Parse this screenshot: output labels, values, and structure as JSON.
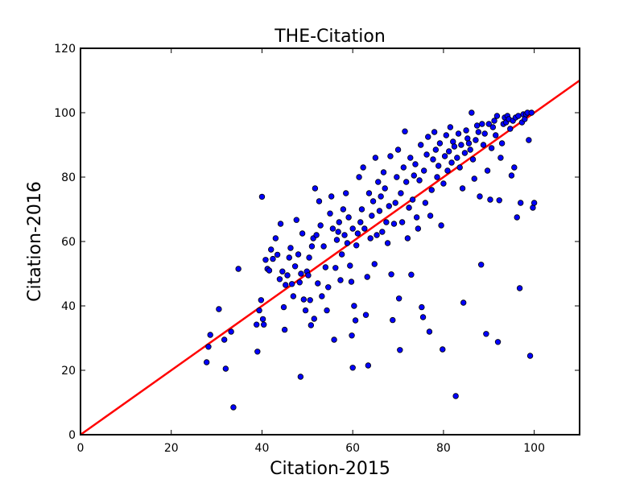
{
  "chart_data": {
    "type": "scatter",
    "title": "THE-Citation",
    "xlabel": "Citation-2015",
    "ylabel": "Citation-2016",
    "xlim": [
      0,
      110
    ],
    "ylim": [
      0,
      120
    ],
    "xticks": [
      "0",
      "20",
      "40",
      "60",
      "80",
      "100"
    ],
    "yticks": [
      "0",
      "20",
      "40",
      "60",
      "80",
      "100",
      "120"
    ],
    "grid": false,
    "legend": "none",
    "colors": {
      "points": "#0000ff",
      "point_edge": "#000000",
      "line": "#ff0000"
    },
    "reference_line": {
      "type": "y=x",
      "x": [
        0,
        110
      ],
      "y": [
        0,
        110
      ]
    },
    "series": [
      {
        "points": [
          [
            27.8,
            22.5
          ],
          [
            28.2,
            27.3
          ],
          [
            28.6,
            31.0
          ],
          [
            30.5,
            39.0
          ],
          [
            31.7,
            29.5
          ],
          [
            32.0,
            20.5
          ],
          [
            33.2,
            32.0
          ],
          [
            33.7,
            8.5
          ],
          [
            34.8,
            51.5
          ],
          [
            38.8,
            34.2
          ],
          [
            39.0,
            25.8
          ],
          [
            39.4,
            38.6
          ],
          [
            39.8,
            41.8
          ],
          [
            40.0,
            73.9
          ],
          [
            40.2,
            35.9
          ],
          [
            40.4,
            34.2
          ],
          [
            40.8,
            54.3
          ],
          [
            41.2,
            51.5
          ],
          [
            41.6,
            51.0
          ],
          [
            42.0,
            57.5
          ],
          [
            42.4,
            54.6
          ],
          [
            43.0,
            61.0
          ],
          [
            43.4,
            55.9
          ],
          [
            43.9,
            48.3
          ],
          [
            44.1,
            65.5
          ],
          [
            44.5,
            50.7
          ],
          [
            44.8,
            39.6
          ],
          [
            45.0,
            32.6
          ],
          [
            45.2,
            46.5
          ],
          [
            45.6,
            49.5
          ],
          [
            46.0,
            55.0
          ],
          [
            46.3,
            58.0
          ],
          [
            46.6,
            46.8
          ],
          [
            46.9,
            43.0
          ],
          [
            47.3,
            52.3
          ],
          [
            47.6,
            66.7
          ],
          [
            48.0,
            56.0
          ],
          [
            48.3,
            47.3
          ],
          [
            48.6,
            50.0
          ],
          [
            48.9,
            62.5
          ],
          [
            49.2,
            42.0
          ],
          [
            48.5,
            18.0
          ],
          [
            49.6,
            38.6
          ],
          [
            49.9,
            50.7
          ],
          [
            50.2,
            49.5
          ],
          [
            50.4,
            55.0
          ],
          [
            50.6,
            41.8
          ],
          [
            50.8,
            34.0
          ],
          [
            51.0,
            58.5
          ],
          [
            51.3,
            61.0
          ],
          [
            51.5,
            36.0
          ],
          [
            51.7,
            76.5
          ],
          [
            52.0,
            62.0
          ],
          [
            52.3,
            47.0
          ],
          [
            52.6,
            72.5
          ],
          [
            52.9,
            65.0
          ],
          [
            53.2,
            43.0
          ],
          [
            53.6,
            58.5
          ],
          [
            54.0,
            52.0
          ],
          [
            54.3,
            38.6
          ],
          [
            54.6,
            45.8
          ],
          [
            55.0,
            68.7
          ],
          [
            55.3,
            74.0
          ],
          [
            55.6,
            64.0
          ],
          [
            55.9,
            29.5
          ],
          [
            56.2,
            51.8
          ],
          [
            56.5,
            60.5
          ],
          [
            56.8,
            63.0
          ],
          [
            57.0,
            66.0
          ],
          [
            57.3,
            48.0
          ],
          [
            57.6,
            56.0
          ],
          [
            57.9,
            70.0
          ],
          [
            58.2,
            62.0
          ],
          [
            58.5,
            75.0
          ],
          [
            58.8,
            59.5
          ],
          [
            59.1,
            67.5
          ],
          [
            59.4,
            52.5
          ],
          [
            59.7,
            47.5
          ],
          [
            60.0,
            64.0
          ],
          [
            59.8,
            30.8
          ],
          [
            60.0,
            20.8
          ],
          [
            60.3,
            40.0
          ],
          [
            60.6,
            35.5
          ],
          [
            60.8,
            58.8
          ],
          [
            61.1,
            62.5
          ],
          [
            61.4,
            80.0
          ],
          [
            61.7,
            66.0
          ],
          [
            62.0,
            70.0
          ],
          [
            62.3,
            83.0
          ],
          [
            62.6,
            64.0
          ],
          [
            62.9,
            37.2
          ],
          [
            63.2,
            49.0
          ],
          [
            63.4,
            21.5
          ],
          [
            63.6,
            75.0
          ],
          [
            63.9,
            61.0
          ],
          [
            64.2,
            68.0
          ],
          [
            64.5,
            72.5
          ],
          [
            64.8,
            53.0
          ],
          [
            65.0,
            86.0
          ],
          [
            65.3,
            62.0
          ],
          [
            65.6,
            78.5
          ],
          [
            65.9,
            69.5
          ],
          [
            66.2,
            74.0
          ],
          [
            66.5,
            63.0
          ],
          [
            66.8,
            81.5
          ],
          [
            67.1,
            76.5
          ],
          [
            67.4,
            66.0
          ],
          [
            67.7,
            59.5
          ],
          [
            68.0,
            71.0
          ],
          [
            68.3,
            86.5
          ],
          [
            68.5,
            49.8
          ],
          [
            68.8,
            35.6
          ],
          [
            69.1,
            65.5
          ],
          [
            69.4,
            72.0
          ],
          [
            69.7,
            80.0
          ],
          [
            70.0,
            88.5
          ],
          [
            70.2,
            42.3
          ],
          [
            70.4,
            26.3
          ],
          [
            70.6,
            75.0
          ],
          [
            70.9,
            66.0
          ],
          [
            71.2,
            83.0
          ],
          [
            71.5,
            94.2
          ],
          [
            71.8,
            78.5
          ],
          [
            72.1,
            61.0
          ],
          [
            72.4,
            70.5
          ],
          [
            72.7,
            86.0
          ],
          [
            72.9,
            49.7
          ],
          [
            73.2,
            73.0
          ],
          [
            73.5,
            80.5
          ],
          [
            73.8,
            84.0
          ],
          [
            74.1,
            67.5
          ],
          [
            74.4,
            64.0
          ],
          [
            74.7,
            79.0
          ],
          [
            75.0,
            90.0
          ],
          [
            75.2,
            39.6
          ],
          [
            75.5,
            36.5
          ],
          [
            75.7,
            82.0
          ],
          [
            76.0,
            72.0
          ],
          [
            76.3,
            87.0
          ],
          [
            76.6,
            92.5
          ],
          [
            76.9,
            32.0
          ],
          [
            77.1,
            68.0
          ],
          [
            77.4,
            76.0
          ],
          [
            77.7,
            85.5
          ],
          [
            78.0,
            94.0
          ],
          [
            78.3,
            88.5
          ],
          [
            78.6,
            80.0
          ],
          [
            78.9,
            83.5
          ],
          [
            79.2,
            90.5
          ],
          [
            79.5,
            65.0
          ],
          [
            79.8,
            26.5
          ],
          [
            80.0,
            78.0
          ],
          [
            80.3,
            86.5
          ],
          [
            80.6,
            93.0
          ],
          [
            80.9,
            82.0
          ],
          [
            81.2,
            88.0
          ],
          [
            81.5,
            95.5
          ],
          [
            81.8,
            84.5
          ],
          [
            82.1,
            91.0
          ],
          [
            82.4,
            89.5
          ],
          [
            82.7,
            12.0
          ],
          [
            83.0,
            86.0
          ],
          [
            83.3,
            93.5
          ],
          [
            83.6,
            83.0
          ],
          [
            83.9,
            90.0
          ],
          [
            84.2,
            76.5
          ],
          [
            84.4,
            41.0
          ],
          [
            84.7,
            87.5
          ],
          [
            85.0,
            94.5
          ],
          [
            85.3,
            92.0
          ],
          [
            85.6,
            90.5
          ],
          [
            85.9,
            88.5
          ],
          [
            86.2,
            100.0
          ],
          [
            86.5,
            85.5
          ],
          [
            86.8,
            79.5
          ],
          [
            87.1,
            91.5
          ],
          [
            87.4,
            96.0
          ],
          [
            87.7,
            94.0
          ],
          [
            88.0,
            74.0
          ],
          [
            88.3,
            52.8
          ],
          [
            88.5,
            96.5
          ],
          [
            88.8,
            90.0
          ],
          [
            89.1,
            93.5
          ],
          [
            89.4,
            31.3
          ],
          [
            89.7,
            82.0
          ],
          [
            90.0,
            96.5
          ],
          [
            90.3,
            73.0
          ],
          [
            90.6,
            89.0
          ],
          [
            90.9,
            95.5
          ],
          [
            91.2,
            97.5
          ],
          [
            91.5,
            93.0
          ],
          [
            91.8,
            99.0
          ],
          [
            92.0,
            28.8
          ],
          [
            92.3,
            72.8
          ],
          [
            92.6,
            86.0
          ],
          [
            92.9,
            90.5
          ],
          [
            93.2,
            96.5
          ],
          [
            93.5,
            98.5
          ],
          [
            93.8,
            97.0
          ],
          [
            94.1,
            99.0
          ],
          [
            94.4,
            98.0
          ],
          [
            94.7,
            95.0
          ],
          [
            95.0,
            80.5
          ],
          [
            95.3,
            97.5
          ],
          [
            95.6,
            83.0
          ],
          [
            95.9,
            98.5
          ],
          [
            96.2,
            67.5
          ],
          [
            96.5,
            99.0
          ],
          [
            96.8,
            45.5
          ],
          [
            97.0,
            72.0
          ],
          [
            97.3,
            97.0
          ],
          [
            97.6,
            99.5
          ],
          [
            97.9,
            98.0
          ],
          [
            98.2,
            99.5
          ],
          [
            98.5,
            100.0
          ],
          [
            98.8,
            91.5
          ],
          [
            99.1,
            24.5
          ],
          [
            99.4,
            100.0
          ],
          [
            99.7,
            70.5
          ],
          [
            100.0,
            72.0
          ]
        ]
      }
    ]
  }
}
